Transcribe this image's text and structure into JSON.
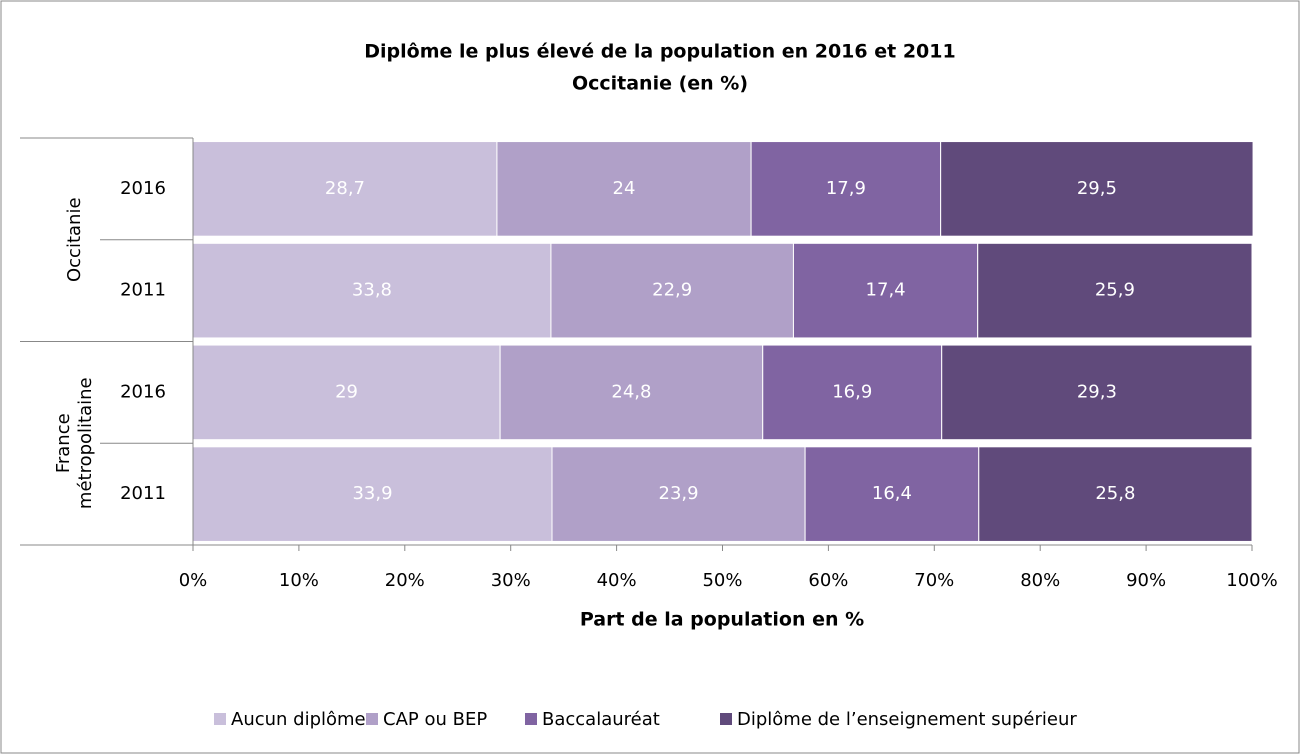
{
  "chart_data": {
    "type": "stacked_barh",
    "title": "Diplôme le plus élevé de la population en 2016 et 2011",
    "subtitle": "Occitanie (en %)",
    "x_label": "Part de la population en %",
    "groups": [
      "Occitanie",
      "France métropolitaine"
    ],
    "categories": [
      "2016",
      "2011",
      "2016",
      "2011"
    ],
    "series": [
      {
        "name": "Aucun diplôme",
        "color": "#c9bfdb",
        "values": [
          28.7,
          33.8,
          29,
          33.9
        ],
        "value_labels": [
          "28,7",
          "33,8",
          "29",
          "33,9"
        ]
      },
      {
        "name": "CAP ou BEP",
        "color": "#b0a0c8",
        "values": [
          24,
          22.9,
          24.8,
          23.9
        ],
        "value_labels": [
          "24",
          "22,9",
          "24,8",
          "23,9"
        ]
      },
      {
        "name": "Baccalauréat",
        "color": "#8064a2",
        "values": [
          17.9,
          17.4,
          16.9,
          16.4
        ],
        "value_labels": [
          "17,9",
          "17,4",
          "16,9",
          "16,4"
        ]
      },
      {
        "name": "Diplôme de l’enseignement supérieur",
        "color": "#604a7b",
        "values": [
          29.5,
          25.9,
          29.3,
          25.8
        ],
        "value_labels": [
          "29,5",
          "25,9",
          "29,3",
          "25,8"
        ]
      }
    ],
    "xlim": [
      0,
      100
    ],
    "xticks": [
      {
        "value": 0,
        "label": "0%"
      },
      {
        "value": 10,
        "label": "10%"
      },
      {
        "value": 20,
        "label": "20%"
      },
      {
        "value": 30,
        "label": "30%"
      },
      {
        "value": 40,
        "label": "40%"
      },
      {
        "value": 50,
        "label": "50%"
      },
      {
        "value": 60,
        "label": "60%"
      },
      {
        "value": 70,
        "label": "70%"
      },
      {
        "value": 80,
        "label": "80%"
      },
      {
        "value": 90,
        "label": "90%"
      },
      {
        "value": 100,
        "label": "100%"
      }
    ],
    "legend": "bottom"
  }
}
